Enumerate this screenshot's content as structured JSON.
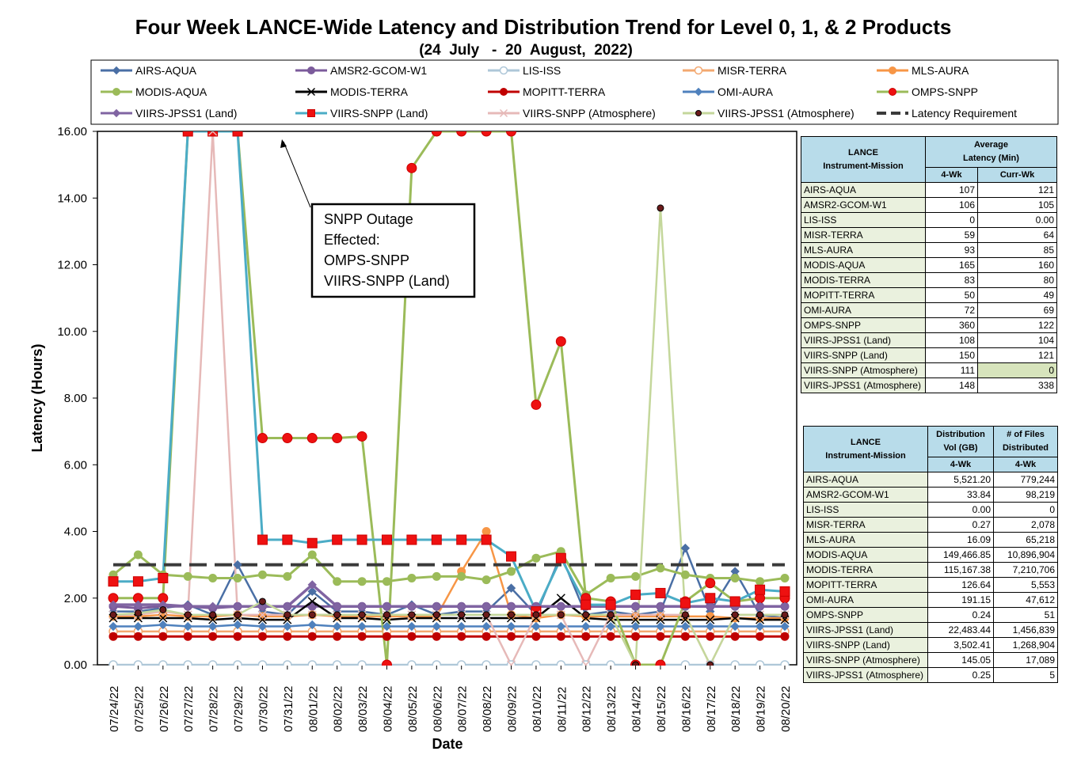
{
  "title": "Four Week LANCE-Wide Latency and Distribution Trend for Level 0, 1, & 2 Products",
  "subtitle": "(24  July   -  20  August,  2022)",
  "annotation": {
    "lines": [
      "SNPP Outage",
      "Effected:",
      "OMPS-SNPP",
      "VIIRS-SNPP (Land)"
    ]
  },
  "chart_data": {
    "type": "line",
    "title": "Four Week LANCE-Wide Latency and Distribution Trend for Level 0, 1, & 2 Products",
    "xlabel": "Date",
    "ylabel": "Latency (Hours)",
    "ylim": [
      0,
      16
    ],
    "y_ticks": [
      "0.00",
      "2.00",
      "4.00",
      "6.00",
      "8.00",
      "10.00",
      "12.00",
      "14.00",
      "16.00"
    ],
    "grid": false,
    "legend_position": "top",
    "categories": [
      "07/24/22",
      "07/25/22",
      "07/26/22",
      "07/27/22",
      "07/28/22",
      "07/29/22",
      "07/30/22",
      "07/31/22",
      "08/01/22",
      "08/02/22",
      "08/03/22",
      "08/04/22",
      "08/05/22",
      "08/06/22",
      "08/07/22",
      "08/08/22",
      "08/09/22",
      "08/10/22",
      "08/11/22",
      "08/12/22",
      "08/13/22",
      "08/14/22",
      "08/15/22",
      "08/16/22",
      "08/17/22",
      "08/18/22",
      "08/19/22",
      "08/20/22"
    ],
    "series": [
      {
        "name": "AIRS-AQUA",
        "color": "#4a6fa5",
        "marker": "diamond",
        "values": [
          1.6,
          1.6,
          1.7,
          1.8,
          1.5,
          3.0,
          1.6,
          1.5,
          2.2,
          1.6,
          1.6,
          1.5,
          1.8,
          1.5,
          1.6,
          1.6,
          2.3,
          1.5,
          3.3,
          1.5,
          1.6,
          1.5,
          1.6,
          3.5,
          1.6,
          2.8,
          1.5,
          1.4
        ]
      },
      {
        "name": "AMSR2-GCOM-W1",
        "color": "#7b5b9b",
        "marker": "circle",
        "values": [
          1.75,
          1.7,
          1.75,
          1.75,
          1.7,
          1.75,
          1.75,
          1.75,
          1.75,
          1.75,
          1.75,
          1.75,
          1.75,
          1.75,
          1.75,
          1.75,
          1.75,
          1.75,
          1.75,
          1.75,
          1.75,
          1.75,
          1.75,
          1.75,
          1.75,
          1.75,
          1.75,
          1.75
        ]
      },
      {
        "name": "LIS-ISS",
        "color": "#aec7d8",
        "marker": "circle-open",
        "values": [
          0,
          0,
          0,
          0,
          0,
          0,
          0,
          0,
          0,
          0,
          0,
          0,
          0,
          0,
          0,
          0,
          0,
          0,
          0,
          0,
          0,
          0,
          0,
          0,
          0,
          0,
          0,
          0
        ]
      },
      {
        "name": "MISR-TERRA",
        "color": "#f3a870",
        "marker": "circle-open",
        "values": [
          1.0,
          1.0,
          1.0,
          1.0,
          1.0,
          1.0,
          1.0,
          1.0,
          1.0,
          1.0,
          1.0,
          1.0,
          1.0,
          1.0,
          1.0,
          1.0,
          1.0,
          1.0,
          1.0,
          1.0,
          1.0,
          1.0,
          1.0,
          1.0,
          1.0,
          1.0,
          1.0,
          1.0
        ]
      },
      {
        "name": "MLS-AURA",
        "color": "#f79646",
        "marker": "circle",
        "values": [
          1.45,
          1.45,
          1.5,
          1.45,
          1.45,
          1.5,
          1.45,
          1.45,
          1.5,
          1.45,
          1.45,
          1.45,
          1.45,
          1.45,
          2.8,
          4.0,
          1.5,
          1.4,
          1.5,
          1.45,
          1.45,
          1.45,
          1.45,
          1.45,
          1.45,
          1.4,
          1.4,
          1.4
        ]
      },
      {
        "name": "MODIS-AQUA",
        "color": "#9bbb59",
        "marker": "circle",
        "values": [
          2.7,
          3.3,
          2.7,
          2.65,
          2.6,
          2.6,
          2.7,
          2.65,
          3.3,
          2.5,
          2.5,
          2.5,
          2.6,
          2.65,
          2.65,
          2.55,
          2.8,
          3.2,
          3.4,
          2.1,
          2.6,
          2.65,
          2.9,
          2.7,
          2.6,
          2.6,
          2.5,
          2.6
        ]
      },
      {
        "name": "MODIS-TERRA",
        "color": "#000000",
        "marker": "x",
        "values": [
          1.4,
          1.4,
          1.4,
          1.4,
          1.35,
          1.4,
          1.35,
          1.35,
          1.9,
          1.4,
          1.4,
          1.35,
          1.4,
          1.4,
          1.4,
          1.4,
          1.4,
          1.4,
          2.0,
          1.4,
          1.35,
          1.35,
          1.35,
          1.35,
          1.35,
          1.4,
          1.35,
          1.35
        ]
      },
      {
        "name": "MOPITT-TERRA",
        "color": "#c00000",
        "marker": "circle",
        "values": [
          0.85,
          0.85,
          0.85,
          0.85,
          0.85,
          0.85,
          0.85,
          0.85,
          0.85,
          0.85,
          0.85,
          0.85,
          0.85,
          0.85,
          0.85,
          0.85,
          0.85,
          0.85,
          0.85,
          0.85,
          0.85,
          0.85,
          0.85,
          0.85,
          0.85,
          0.85,
          0.85,
          0.85
        ]
      },
      {
        "name": "OMI-AURA",
        "color": "#4f81bd",
        "marker": "diamond",
        "values": [
          1.15,
          1.15,
          1.2,
          1.15,
          1.15,
          1.2,
          1.15,
          1.15,
          1.2,
          1.15,
          1.15,
          1.15,
          1.15,
          1.15,
          1.15,
          1.15,
          1.15,
          1.15,
          1.15,
          1.15,
          1.15,
          1.15,
          1.15,
          1.15,
          1.15,
          1.15,
          1.15,
          1.15
        ]
      },
      {
        "name": "OMPS-SNPP",
        "color": "#9bbb59",
        "marker": "circle-red",
        "values": [
          2.0,
          2.0,
          2.0,
          16,
          16,
          16,
          6.8,
          6.8,
          6.8,
          6.8,
          6.85,
          0,
          14.9,
          16,
          16,
          16,
          16,
          7.8,
          9.7,
          2.0,
          1.9,
          0,
          0,
          1.9,
          2.45,
          1.9,
          2.0,
          2.0
        ]
      },
      {
        "name": "VIIRS-JPSS1 (Land)",
        "color": "#8064a2",
        "marker": "diamond",
        "values": [
          1.8,
          1.8,
          1.8,
          1.75,
          1.75,
          1.75,
          1.75,
          1.75,
          2.4,
          1.75,
          1.75,
          1.75,
          1.75,
          1.75,
          1.75,
          1.75,
          1.75,
          1.75,
          1.75,
          1.75,
          1.75,
          1.75,
          1.75,
          1.75,
          1.75,
          1.75,
          1.75,
          1.75
        ]
      },
      {
        "name": "VIIRS-SNPP (Land)",
        "color": "#4bacc6",
        "marker": "square-red",
        "values": [
          2.5,
          2.5,
          2.6,
          16,
          16,
          16,
          3.75,
          3.75,
          3.65,
          3.75,
          3.75,
          3.75,
          3.75,
          3.75,
          3.75,
          3.75,
          3.25,
          1.6,
          3.2,
          1.8,
          1.8,
          2.1,
          2.15,
          1.85,
          2.0,
          1.9,
          2.25,
          2.2
        ]
      },
      {
        "name": "VIIRS-SNPP (Atmosphere)",
        "color": "#e6b9b8",
        "marker": "x",
        "values": [
          1.5,
          1.5,
          1.6,
          1.5,
          16,
          1.5,
          1.5,
          1.5,
          1.5,
          1.5,
          1.5,
          1.5,
          1.5,
          1.5,
          1.5,
          1.5,
          0,
          1.5,
          1.5,
          0,
          1.5,
          1.5,
          1.5,
          1.5,
          0,
          1.5,
          1.5,
          1.5
        ]
      },
      {
        "name": "VIIRS-JPSS1 (Atmosphere)",
        "color": "#c4d79b",
        "marker": "circle-dark",
        "values": [
          1.5,
          1.55,
          1.65,
          1.5,
          1.5,
          1.5,
          1.9,
          1.5,
          1.5,
          1.5,
          1.5,
          1.5,
          1.5,
          1.5,
          1.5,
          1.5,
          1.5,
          1.5,
          1.5,
          1.5,
          1.5,
          0,
          13.7,
          1.5,
          0,
          1.5,
          1.5,
          1.5
        ]
      },
      {
        "name": "Latency Requirement",
        "color": "#404040",
        "marker": "dash",
        "values": [
          3,
          3,
          3,
          3,
          3,
          3,
          3,
          3,
          3,
          3,
          3,
          3,
          3,
          3,
          3,
          3,
          3,
          3,
          3,
          3,
          3,
          3,
          3,
          3,
          3,
          3,
          3,
          3
        ]
      }
    ]
  },
  "latency_table": {
    "header_col1": [
      "LANCE",
      "Instrument-Mission"
    ],
    "header_col2": [
      "Average",
      "Latency (Min)"
    ],
    "sub_headers": [
      "4-Wk",
      "Curr-Wk"
    ],
    "rows": [
      {
        "name": "AIRS-AQUA",
        "wk4": "107",
        "curr": "121"
      },
      {
        "name": "AMSR2-GCOM-W1",
        "wk4": "106",
        "curr": "105"
      },
      {
        "name": "LIS-ISS",
        "wk4": "0",
        "curr": "0.00"
      },
      {
        "name": "MISR-TERRA",
        "wk4": "59",
        "curr": "64"
      },
      {
        "name": "MLS-AURA",
        "wk4": "93",
        "curr": "85"
      },
      {
        "name": "MODIS-AQUA",
        "wk4": "165",
        "curr": "160"
      },
      {
        "name": "MODIS-TERRA",
        "wk4": "83",
        "curr": "80"
      },
      {
        "name": "MOPITT-TERRA",
        "wk4": "50",
        "curr": "49"
      },
      {
        "name": "OMI-AURA",
        "wk4": "72",
        "curr": "69"
      },
      {
        "name": "OMPS-SNPP",
        "wk4": "360",
        "curr": "122"
      },
      {
        "name": "VIIRS-JPSS1 (Land)",
        "wk4": "108",
        "curr": "104"
      },
      {
        "name": "VIIRS-SNPP (Land)",
        "wk4": "150",
        "curr": "121"
      },
      {
        "name": "VIIRS-SNPP (Atmosphere)",
        "wk4": "111",
        "curr": "0"
      },
      {
        "name": "VIIRS-JPSS1 (Atmosphere)",
        "wk4": "148",
        "curr": "338"
      }
    ]
  },
  "distribution_table": {
    "header_col1": [
      "LANCE",
      "Instrument-Mission"
    ],
    "header_col2": [
      "Distribution",
      "Vol (GB)"
    ],
    "header_col3": [
      "# of Files",
      "Distributed"
    ],
    "sub_headers": [
      "4-Wk",
      "4-Wk"
    ],
    "rows": [
      {
        "name": "AIRS-AQUA",
        "vol": "5,521.20",
        "files": "779,244"
      },
      {
        "name": "AMSR2-GCOM-W1",
        "vol": "33.84",
        "files": "98,219"
      },
      {
        "name": "LIS-ISS",
        "vol": "0.00",
        "files": "0"
      },
      {
        "name": "MISR-TERRA",
        "vol": "0.27",
        "files": "2,078"
      },
      {
        "name": "MLS-AURA",
        "vol": "16.09",
        "files": "65,218"
      },
      {
        "name": "MODIS-AQUA",
        "vol": "149,466.85",
        "files": "10,896,904"
      },
      {
        "name": "MODIS-TERRA",
        "vol": "115,167.38",
        "files": "7,210,706"
      },
      {
        "name": "MOPITT-TERRA",
        "vol": "126.64",
        "files": "5,553"
      },
      {
        "name": "OMI-AURA",
        "vol": "191.15",
        "files": "47,612"
      },
      {
        "name": "OMPS-SNPP",
        "vol": "0.24",
        "files": "51"
      },
      {
        "name": "VIIRS-JPSS1 (Land)",
        "vol": "22,483.44",
        "files": "1,456,839"
      },
      {
        "name": "VIIRS-SNPP (Land)",
        "vol": "3,502.41",
        "files": "1,268,904"
      },
      {
        "name": "VIIRS-SNPP (Atmosphere)",
        "vol": "145.05",
        "files": "17,089"
      },
      {
        "name": "VIIRS-JPSS1 (Atmosphere)",
        "vol": "0.25",
        "files": "5"
      }
    ]
  }
}
